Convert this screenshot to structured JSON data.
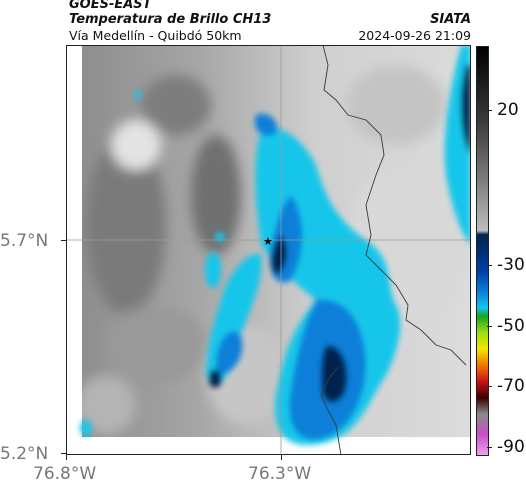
{
  "header": {
    "satellite": "GOES-EAST",
    "product": "Temperatura de Brillo CH13",
    "route": "Vía Medellín - Quibdó 50km",
    "brand": "SIATA",
    "datetime": "2024-09-26 21:09"
  },
  "axes": {
    "x_ticks": [
      "76.8°W",
      "76.3°W"
    ],
    "y_ticks": [
      "5.7°N",
      "5.2°N"
    ]
  },
  "colorbar": {
    "labels": [
      "20",
      "-30",
      "-50",
      "-70",
      "-90"
    ],
    "colors": [
      "#000000",
      "#3a3a3a",
      "#7a7a7a",
      "#bdbdbd",
      "#00234f",
      "#0040a5",
      "#0a7fd9",
      "#12c6ea",
      "#15a51c",
      "#9ade15",
      "#f4e600",
      "#f07800",
      "#c81414",
      "#3a0000",
      "#8a8a8a",
      "#c84fc8",
      "#f0a0f0"
    ]
  },
  "map_features": {
    "marker": "star-icon",
    "colors": {
      "cloud_light": "#12c6ea",
      "cloud_mid": "#0a7fd9",
      "cloud_dark": "#00234f",
      "border_line": "#3a3a3a",
      "grid_line": "#9a9a9a"
    }
  }
}
